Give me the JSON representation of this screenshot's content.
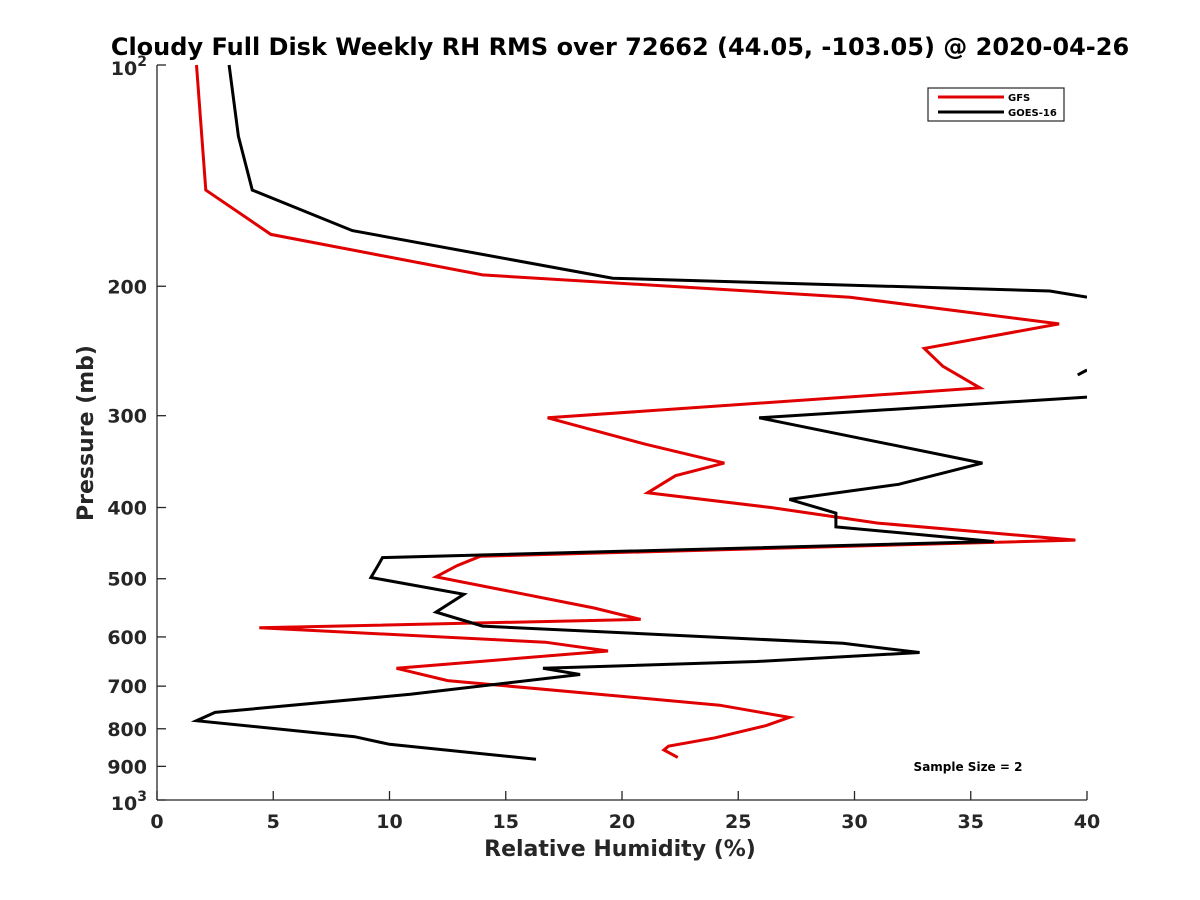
{
  "chart_data": {
    "type": "line",
    "title": "Cloudy Full Disk Weekly RH RMS over 72662 (44.05, -103.05) @ 2020-04-26",
    "xlabel": "Relative Humidity (%)",
    "ylabel": "Pressure (mb)",
    "xlim": [
      0,
      40
    ],
    "ylim": [
      100,
      1000
    ],
    "y_scale": "log",
    "y_reversed": true,
    "x_ticks": [
      0,
      5,
      10,
      15,
      20,
      25,
      30,
      35,
      40
    ],
    "y_ticks": [
      {
        "value": 100,
        "base": "10",
        "exp": "2"
      },
      {
        "value": 200,
        "label": "200"
      },
      {
        "value": 300,
        "label": "300"
      },
      {
        "value": 400,
        "label": "400"
      },
      {
        "value": 500,
        "label": "500"
      },
      {
        "value": 600,
        "label": "600"
      },
      {
        "value": 700,
        "label": "700"
      },
      {
        "value": 800,
        "label": "800"
      },
      {
        "value": 900,
        "label": "900"
      },
      {
        "value": 1000,
        "base": "10",
        "exp": "3"
      }
    ],
    "grid": false,
    "legend_position": "top-right",
    "annotation": "Sample Size = 2",
    "series": [
      {
        "name": "GFS",
        "color": "#e00000",
        "points": [
          [
            1.7,
            100
          ],
          [
            2.1,
            148
          ],
          [
            4.9,
            170
          ],
          [
            14.0,
            193
          ],
          [
            29.8,
            207
          ],
          [
            38.8,
            225
          ],
          [
            33.0,
            243
          ],
          [
            33.8,
            257
          ],
          [
            35.4,
            275
          ],
          [
            16.8,
            302
          ],
          [
            21.0,
            328
          ],
          [
            24.4,
            348
          ],
          [
            22.3,
            362
          ],
          [
            21.1,
            382
          ],
          [
            26.4,
            400
          ],
          [
            31.0,
            420
          ],
          [
            39.5,
            443
          ],
          [
            13.9,
            466
          ],
          [
            12.9,
            480
          ],
          [
            12.0,
            497
          ],
          [
            18.8,
            548
          ],
          [
            20.8,
            568
          ],
          [
            4.4,
            583
          ],
          [
            16.7,
            610
          ],
          [
            19.4,
            627
          ],
          [
            10.3,
            662
          ],
          [
            12.5,
            688
          ],
          [
            24.2,
            743
          ],
          [
            27.2,
            772
          ],
          [
            26.2,
            792
          ],
          [
            24.0,
            823
          ],
          [
            22.0,
            845
          ],
          [
            21.8,
            855
          ],
          [
            22.4,
            875
          ]
        ]
      },
      {
        "name": "GOES-16",
        "color": "#000000",
        "points": [
          [
            3.1,
            100
          ],
          [
            3.5,
            125
          ],
          [
            4.1,
            148
          ],
          [
            8.4,
            168
          ],
          [
            19.6,
            195
          ],
          [
            38.4,
            203
          ],
          [
            40.0,
            207
          ],
          [
            null,
            263
          ],
          [
            39.6,
            264
          ],
          [
            40.0,
            260
          ],
          [
            null,
            283
          ],
          [
            40.0,
            283
          ],
          [
            25.9,
            302
          ],
          [
            35.5,
            348
          ],
          [
            31.9,
            372
          ],
          [
            27.2,
            390
          ],
          [
            29.2,
            407
          ],
          [
            29.2,
            425
          ],
          [
            36.0,
            445
          ],
          [
            9.7,
            468
          ],
          [
            9.5,
            480
          ],
          [
            9.2,
            498
          ],
          [
            13.2,
            525
          ],
          [
            12.0,
            555
          ],
          [
            14.0,
            580
          ],
          [
            29.5,
            612
          ],
          [
            32.8,
            630
          ],
          [
            25.8,
            648
          ],
          [
            16.6,
            662
          ],
          [
            18.2,
            675
          ],
          [
            10.9,
            718
          ],
          [
            2.5,
            760
          ],
          [
            1.7,
            780
          ],
          [
            8.5,
            820
          ],
          [
            10.0,
            840
          ],
          [
            16.3,
            880
          ]
        ]
      }
    ]
  }
}
